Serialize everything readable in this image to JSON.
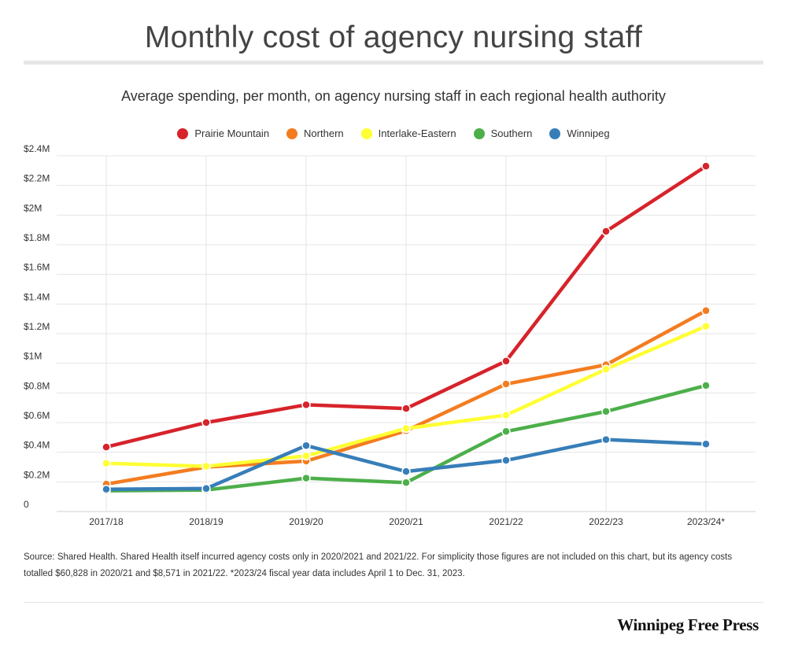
{
  "chart_data": {
    "type": "line",
    "title": "Monthly cost of agency nursing staff",
    "subtitle": "Average spending, per month, on agency nursing staff in each regional health authority",
    "x": [
      "2017/18",
      "2018/19",
      "2019/20",
      "2020/21",
      "2021/22",
      "2022/23",
      "2023/24*"
    ],
    "ylim": [
      0,
      2400000
    ],
    "yticks": [
      {
        "value": 0,
        "label": "0"
      },
      {
        "value": 200000,
        "label": "$0.2M"
      },
      {
        "value": 400000,
        "label": "$0.4M"
      },
      {
        "value": 600000,
        "label": "$0.6M"
      },
      {
        "value": 800000,
        "label": "$0.8M"
      },
      {
        "value": 1000000,
        "label": "$1M"
      },
      {
        "value": 1200000,
        "label": "$1.2M"
      },
      {
        "value": 1400000,
        "label": "$1.4M"
      },
      {
        "value": 1600000,
        "label": "$1.6M"
      },
      {
        "value": 1800000,
        "label": "$1.8M"
      },
      {
        "value": 2000000,
        "label": "$2M"
      },
      {
        "value": 2200000,
        "label": "$2.2M"
      },
      {
        "value": 2400000,
        "label": "$2.4M"
      }
    ],
    "grid": true,
    "legend_position": "top-center",
    "series": [
      {
        "name": "Prairie Mountain",
        "color": "#d7232a",
        "values": [
          435000,
          600000,
          720000,
          695000,
          1015000,
          1890000,
          2330000
        ]
      },
      {
        "name": "Northern",
        "color": "#f47c20",
        "values": [
          185000,
          300000,
          340000,
          545000,
          860000,
          990000,
          1355000
        ]
      },
      {
        "name": "Interlake-Eastern",
        "color": "#ffff33",
        "values": [
          325000,
          305000,
          375000,
          560000,
          650000,
          960000,
          1250000
        ]
      },
      {
        "name": "Southern",
        "color": "#4daf4a",
        "values": [
          140000,
          145000,
          225000,
          195000,
          540000,
          675000,
          850000
        ]
      },
      {
        "name": "Winnipeg",
        "color": "#377eb8",
        "values": [
          150000,
          155000,
          445000,
          270000,
          345000,
          485000,
          455000
        ]
      }
    ]
  },
  "source_note": "Source: Shared Health. Shared Health itself incurred agency costs only in 2020/2021 and 2021/22. For simplicity those figures are not included on this chart, but its agency costs totalled $60,828 in 2020/21 and $8,571 in 2021/22. *2023/24 fiscal year data includes April 1 to Dec. 31, 2023.",
  "brand": "Winnipeg Free Press"
}
